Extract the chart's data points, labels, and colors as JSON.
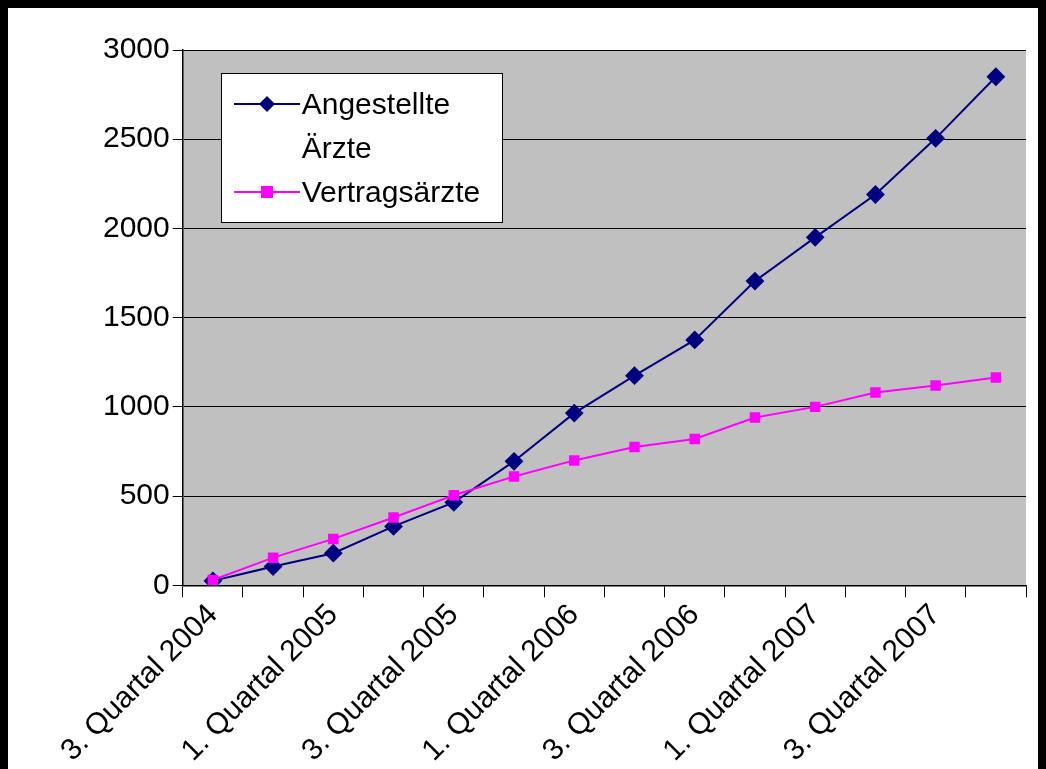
{
  "chart_data": {
    "type": "line",
    "categories": [
      "3. Quartal 2004",
      null,
      "1. Quartal 2005",
      null,
      "3. Quartal 2005",
      null,
      "1. Quartal 2006",
      null,
      "3. Quartal 2006",
      null,
      "1. Quartal 2007",
      null,
      "3. Quartal 2007",
      null
    ],
    "series": [
      {
        "name": "Angestellte Ärzte",
        "color": "#000080",
        "marker": "diamond",
        "values": [
          25,
          105,
          180,
          330,
          465,
          695,
          965,
          1175,
          1375,
          1705,
          1950,
          2190,
          2505,
          2850
        ]
      },
      {
        "name": "Vertragsärzte",
        "color": "#ff00ff",
        "marker": "square",
        "values": [
          30,
          155,
          260,
          380,
          505,
          610,
          700,
          775,
          820,
          940,
          1000,
          1080,
          1120,
          1165
        ]
      }
    ],
    "ylim": [
      0,
      3000
    ],
    "yticks": [
      0,
      500,
      1000,
      1500,
      2000,
      2500,
      3000
    ],
    "grid": "y",
    "legend": "top left"
  }
}
